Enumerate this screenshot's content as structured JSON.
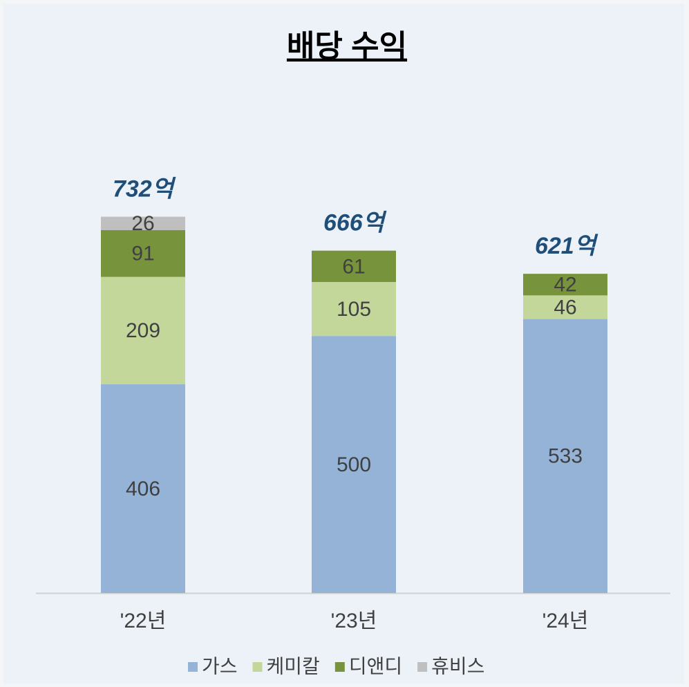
{
  "chart_data": {
    "type": "stacked_bar",
    "title": "배당 수익",
    "categories": [
      "'22년",
      "'23년",
      "'24년"
    ],
    "series": [
      {
        "name": "가스",
        "color": "#95b3d7",
        "values": [
          406,
          500,
          533
        ]
      },
      {
        "name": "케미칼",
        "color": "#c4d79b",
        "values": [
          209,
          105,
          46
        ]
      },
      {
        "name": "디앤디",
        "color": "#77933c",
        "values": [
          91,
          61,
          42
        ]
      },
      {
        "name": "휴비스",
        "color": "#bfbfbf",
        "values": [
          26,
          null,
          null
        ]
      }
    ],
    "totals": {
      "values": [
        732,
        666,
        621
      ],
      "value_labels": [
        "732억",
        "666억",
        "621억"
      ]
    },
    "ylim": [
      0,
      800
    ]
  }
}
